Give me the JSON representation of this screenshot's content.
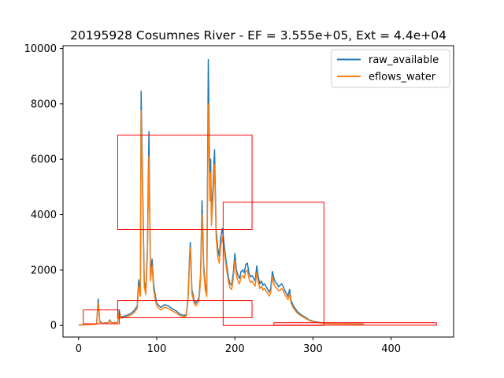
{
  "chart_data": {
    "type": "line",
    "title": "20195928 Cosumnes River - EF = 3.555e+05, Ext = 4.4e+04",
    "xlabel": "",
    "ylabel": "",
    "xlim": [
      -20,
      480
    ],
    "ylim": [
      -420,
      10100
    ],
    "x_ticks": [
      0,
      100,
      200,
      300,
      400
    ],
    "x_tick_labels": [
      "0",
      "100",
      "200",
      "300",
      "400"
    ],
    "y_ticks": [
      0,
      2000,
      4000,
      6000,
      8000,
      10000
    ],
    "y_tick_labels": [
      "0",
      "2000",
      "4000",
      "6000",
      "8000",
      "10000"
    ],
    "grid": false,
    "legend_position": "top-right",
    "series": [
      {
        "name": "raw_available",
        "color": "#1f77b4",
        "points": [
          [
            0,
            20
          ],
          [
            10,
            30
          ],
          [
            20,
            40
          ],
          [
            23,
            60
          ],
          [
            25,
            950
          ],
          [
            27,
            150
          ],
          [
            30,
            80
          ],
          [
            38,
            100
          ],
          [
            40,
            200
          ],
          [
            42,
            100
          ],
          [
            50,
            110
          ],
          [
            52,
            550
          ],
          [
            54,
            300
          ],
          [
            60,
            350
          ],
          [
            65,
            400
          ],
          [
            70,
            500
          ],
          [
            75,
            700
          ],
          [
            77,
            1650
          ],
          [
            79,
            1200
          ],
          [
            80,
            8450
          ],
          [
            82,
            5000
          ],
          [
            84,
            1600
          ],
          [
            86,
            1300
          ],
          [
            88,
            2750
          ],
          [
            90,
            7000
          ],
          [
            92,
            1800
          ],
          [
            94,
            2400
          ],
          [
            96,
            1500
          ],
          [
            98,
            1100
          ],
          [
            100,
            800
          ],
          [
            105,
            650
          ],
          [
            110,
            750
          ],
          [
            115,
            700
          ],
          [
            120,
            600
          ],
          [
            125,
            520
          ],
          [
            130,
            400
          ],
          [
            135,
            360
          ],
          [
            138,
            400
          ],
          [
            140,
            1000
          ],
          [
            142,
            2500
          ],
          [
            143,
            3000
          ],
          [
            145,
            1300
          ],
          [
            148,
            900
          ],
          [
            150,
            800
          ],
          [
            154,
            1000
          ],
          [
            156,
            1800
          ],
          [
            158,
            4500
          ],
          [
            160,
            2200
          ],
          [
            162,
            1500
          ],
          [
            164,
            1200
          ],
          [
            166,
            9600
          ],
          [
            168,
            5000
          ],
          [
            169,
            6000
          ],
          [
            170,
            4000
          ],
          [
            172,
            5000
          ],
          [
            174,
            6350
          ],
          [
            176,
            3500
          ],
          [
            178,
            2800
          ],
          [
            180,
            2500
          ],
          [
            182,
            3200
          ],
          [
            184,
            3500
          ],
          [
            186,
            3000
          ],
          [
            188,
            2500
          ],
          [
            190,
            2100
          ],
          [
            192,
            1700
          ],
          [
            194,
            1500
          ],
          [
            196,
            1450
          ],
          [
            198,
            1900
          ],
          [
            200,
            2600
          ],
          [
            202,
            2000
          ],
          [
            204,
            1800
          ],
          [
            206,
            1700
          ],
          [
            208,
            1950
          ],
          [
            210,
            2000
          ],
          [
            212,
            1900
          ],
          [
            214,
            2200
          ],
          [
            216,
            2250
          ],
          [
            218,
            1900
          ],
          [
            220,
            1750
          ],
          [
            222,
            1800
          ],
          [
            224,
            1700
          ],
          [
            226,
            1600
          ],
          [
            228,
            2150
          ],
          [
            230,
            1750
          ],
          [
            232,
            1500
          ],
          [
            234,
            1600
          ],
          [
            236,
            1450
          ],
          [
            238,
            1500
          ],
          [
            240,
            1400
          ],
          [
            242,
            1300
          ],
          [
            244,
            1200
          ],
          [
            246,
            1350
          ],
          [
            248,
            1950
          ],
          [
            250,
            1700
          ],
          [
            252,
            1550
          ],
          [
            254,
            1500
          ],
          [
            256,
            1400
          ],
          [
            258,
            1450
          ],
          [
            260,
            1500
          ],
          [
            262,
            1400
          ],
          [
            264,
            1250
          ],
          [
            266,
            1150
          ],
          [
            268,
            1050
          ],
          [
            270,
            1300
          ],
          [
            272,
            900
          ],
          [
            275,
            700
          ],
          [
            280,
            500
          ],
          [
            285,
            380
          ],
          [
            290,
            300
          ],
          [
            295,
            200
          ],
          [
            300,
            150
          ],
          [
            305,
            120
          ],
          [
            310,
            100
          ],
          [
            315,
            80
          ],
          [
            320,
            70
          ],
          [
            330,
            60
          ],
          [
            340,
            60
          ],
          [
            350,
            55
          ],
          [
            360,
            55
          ],
          [
            365,
            55
          ]
        ]
      },
      {
        "name": "eflows_water",
        "color": "#ff7f0e",
        "points": [
          [
            0,
            15
          ],
          [
            10,
            25
          ],
          [
            20,
            35
          ],
          [
            23,
            50
          ],
          [
            25,
            800
          ],
          [
            27,
            120
          ],
          [
            30,
            70
          ],
          [
            38,
            90
          ],
          [
            40,
            170
          ],
          [
            42,
            90
          ],
          [
            50,
            100
          ],
          [
            52,
            480
          ],
          [
            54,
            260
          ],
          [
            60,
            300
          ],
          [
            65,
            350
          ],
          [
            70,
            430
          ],
          [
            75,
            600
          ],
          [
            77,
            1400
          ],
          [
            79,
            1050
          ],
          [
            80,
            7750
          ],
          [
            82,
            4500
          ],
          [
            84,
            1400
          ],
          [
            86,
            1100
          ],
          [
            88,
            2500
          ],
          [
            90,
            6100
          ],
          [
            92,
            1600
          ],
          [
            94,
            2150
          ],
          [
            96,
            1300
          ],
          [
            98,
            950
          ],
          [
            100,
            700
          ],
          [
            105,
            560
          ],
          [
            110,
            660
          ],
          [
            115,
            610
          ],
          [
            120,
            520
          ],
          [
            125,
            450
          ],
          [
            130,
            350
          ],
          [
            135,
            310
          ],
          [
            138,
            350
          ],
          [
            140,
            900
          ],
          [
            142,
            2250
          ],
          [
            143,
            2800
          ],
          [
            145,
            1150
          ],
          [
            148,
            800
          ],
          [
            150,
            700
          ],
          [
            154,
            880
          ],
          [
            156,
            1600
          ],
          [
            158,
            4000
          ],
          [
            160,
            2000
          ],
          [
            162,
            1300
          ],
          [
            164,
            1050
          ],
          [
            166,
            8000
          ],
          [
            168,
            4500
          ],
          [
            169,
            5500
          ],
          [
            170,
            3600
          ],
          [
            172,
            4600
          ],
          [
            174,
            5800
          ],
          [
            176,
            3200
          ],
          [
            178,
            2500
          ],
          [
            180,
            2250
          ],
          [
            182,
            2900
          ],
          [
            184,
            3200
          ],
          [
            186,
            2750
          ],
          [
            188,
            2300
          ],
          [
            190,
            1900
          ],
          [
            192,
            1550
          ],
          [
            194,
            1350
          ],
          [
            196,
            1300
          ],
          [
            198,
            1700
          ],
          [
            200,
            2350
          ],
          [
            202,
            1800
          ],
          [
            204,
            1600
          ],
          [
            206,
            1500
          ],
          [
            208,
            1750
          ],
          [
            210,
            1800
          ],
          [
            212,
            1700
          ],
          [
            214,
            1950
          ],
          [
            216,
            2000
          ],
          [
            218,
            1700
          ],
          [
            220,
            1550
          ],
          [
            222,
            1600
          ],
          [
            224,
            1500
          ],
          [
            226,
            1420
          ],
          [
            228,
            1900
          ],
          [
            230,
            1550
          ],
          [
            232,
            1330
          ],
          [
            234,
            1420
          ],
          [
            236,
            1280
          ],
          [
            238,
            1330
          ],
          [
            240,
            1240
          ],
          [
            242,
            1150
          ],
          [
            244,
            1060
          ],
          [
            246,
            1200
          ],
          [
            248,
            1750
          ],
          [
            250,
            1500
          ],
          [
            252,
            1370
          ],
          [
            254,
            1330
          ],
          [
            256,
            1240
          ],
          [
            258,
            1280
          ],
          [
            260,
            1330
          ],
          [
            262,
            1240
          ],
          [
            264,
            1100
          ],
          [
            266,
            1020
          ],
          [
            268,
            930
          ],
          [
            270,
            1150
          ],
          [
            272,
            800
          ],
          [
            275,
            620
          ],
          [
            280,
            440
          ],
          [
            285,
            340
          ],
          [
            290,
            260
          ],
          [
            295,
            180
          ],
          [
            300,
            130
          ],
          [
            305,
            105
          ],
          [
            310,
            90
          ],
          [
            315,
            70
          ],
          [
            320,
            62
          ],
          [
            330,
            55
          ],
          [
            340,
            53
          ],
          [
            350,
            50
          ],
          [
            360,
            50
          ],
          [
            365,
            50
          ]
        ]
      }
    ],
    "annotation_boxes": {
      "color": "#ff0000",
      "boxes": [
        {
          "x": [
            6,
            52
          ],
          "y": [
            60,
            560
          ]
        },
        {
          "x": [
            50,
            222
          ],
          "y": [
            280,
            900
          ]
        },
        {
          "x": [
            50,
            222
          ],
          "y": [
            3460,
            6870
          ]
        },
        {
          "x": [
            185,
            314
          ],
          "y": [
            0,
            4450
          ]
        },
        {
          "x": [
            250,
            458
          ],
          "y": [
            10,
            100
          ]
        }
      ]
    }
  }
}
